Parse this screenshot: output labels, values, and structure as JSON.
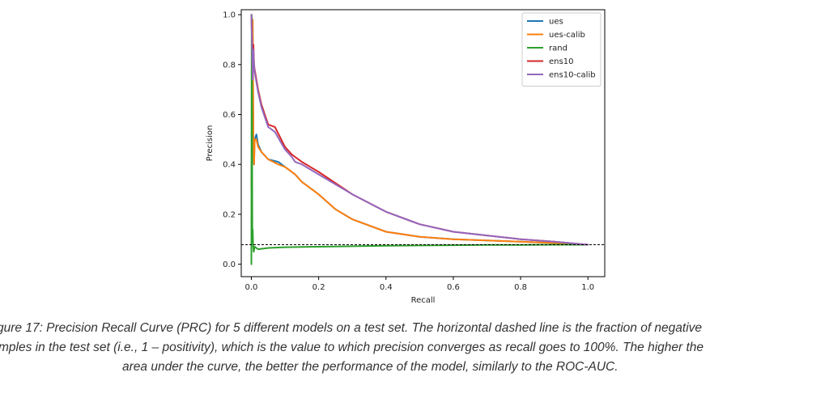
{
  "chart_data": {
    "type": "line",
    "title": "",
    "xlabel": "Recall",
    "ylabel": "Precision",
    "xlim": [
      -0.03,
      1.05
    ],
    "ylim": [
      -0.05,
      1.02
    ],
    "x_ticks": [
      "0.0",
      "0.2",
      "0.4",
      "0.6",
      "0.8",
      "1.0"
    ],
    "y_ticks": [
      "0.0",
      "0.2",
      "0.4",
      "0.6",
      "0.8",
      "1.0"
    ],
    "grid": false,
    "legend_position": "top-right",
    "reference_line": {
      "style": "dashed",
      "color": "#000000",
      "y": 0.078
    },
    "series": [
      {
        "name": "ues",
        "color": "#1f77b4",
        "x": [
          0.0,
          0.002,
          0.004,
          0.006,
          0.008,
          0.01,
          0.015,
          0.02,
          0.03,
          0.05,
          0.08,
          0.1,
          0.13,
          0.15,
          0.2,
          0.25,
          0.3,
          0.4,
          0.5,
          0.6,
          0.7,
          0.8,
          0.9,
          1.0
        ],
        "y": [
          0.3,
          0.5,
          0.98,
          0.5,
          0.4,
          0.5,
          0.52,
          0.48,
          0.45,
          0.42,
          0.41,
          0.39,
          0.36,
          0.33,
          0.28,
          0.22,
          0.18,
          0.13,
          0.11,
          0.1,
          0.095,
          0.09,
          0.085,
          0.078
        ]
      },
      {
        "name": "ues-calib",
        "color": "#ff7f0e",
        "x": [
          0.0,
          0.002,
          0.004,
          0.006,
          0.008,
          0.01,
          0.015,
          0.02,
          0.03,
          0.05,
          0.08,
          0.1,
          0.13,
          0.15,
          0.2,
          0.25,
          0.3,
          0.4,
          0.5,
          0.6,
          0.7,
          0.8,
          0.9,
          1.0
        ],
        "y": [
          0.3,
          0.5,
          0.98,
          0.5,
          0.4,
          0.5,
          0.5,
          0.47,
          0.45,
          0.42,
          0.4,
          0.39,
          0.36,
          0.33,
          0.28,
          0.22,
          0.18,
          0.13,
          0.11,
          0.1,
          0.095,
          0.09,
          0.085,
          0.078
        ]
      },
      {
        "name": "rand",
        "color": "#2ca02c",
        "x": [
          0.0,
          0.001,
          0.002,
          0.003,
          0.004,
          0.005,
          0.007,
          0.01,
          0.02,
          0.05,
          0.1,
          0.2,
          0.3,
          0.4,
          0.5,
          0.6,
          0.7,
          0.8,
          0.9,
          1.0
        ],
        "y": [
          0.0,
          1.0,
          0.6,
          0.1,
          0.14,
          0.08,
          0.05,
          0.07,
          0.06,
          0.065,
          0.068,
          0.07,
          0.072,
          0.074,
          0.075,
          0.076,
          0.077,
          0.077,
          0.078,
          0.078
        ]
      },
      {
        "name": "ens10",
        "color": "#d62728",
        "x": [
          0.0,
          0.002,
          0.004,
          0.006,
          0.008,
          0.01,
          0.02,
          0.03,
          0.05,
          0.07,
          0.1,
          0.12,
          0.13,
          0.15,
          0.2,
          0.3,
          0.4,
          0.5,
          0.6,
          0.7,
          0.8,
          0.9,
          1.0
        ],
        "y": [
          1.0,
          0.9,
          0.75,
          0.88,
          0.8,
          0.78,
          0.7,
          0.64,
          0.56,
          0.55,
          0.47,
          0.44,
          0.43,
          0.41,
          0.37,
          0.28,
          0.21,
          0.16,
          0.13,
          0.115,
          0.1,
          0.09,
          0.078
        ]
      },
      {
        "name": "ens10-calib",
        "color": "#9467bd",
        "x": [
          0.0,
          0.002,
          0.004,
          0.006,
          0.008,
          0.01,
          0.02,
          0.03,
          0.05,
          0.07,
          0.1,
          0.12,
          0.13,
          0.15,
          0.2,
          0.3,
          0.4,
          0.5,
          0.6,
          0.7,
          0.8,
          0.9,
          1.0
        ],
        "y": [
          1.0,
          0.88,
          0.74,
          0.86,
          0.8,
          0.77,
          0.69,
          0.63,
          0.55,
          0.53,
          0.46,
          0.43,
          0.41,
          0.4,
          0.36,
          0.28,
          0.21,
          0.16,
          0.13,
          0.115,
          0.1,
          0.09,
          0.078
        ]
      }
    ]
  },
  "caption": {
    "lines": [
      "gure 17: Precision Recall Curve (PRC) for 5 different models on a test set. The horizontal dashed line is the fraction of negative",
      "mples in the test set (i.e., 1 – positivity), which is the value to which precision converges as recall goes to 100%. The higher the",
      "area under the curve, the better the performance of the model, similarly to the ROC-AUC."
    ]
  }
}
